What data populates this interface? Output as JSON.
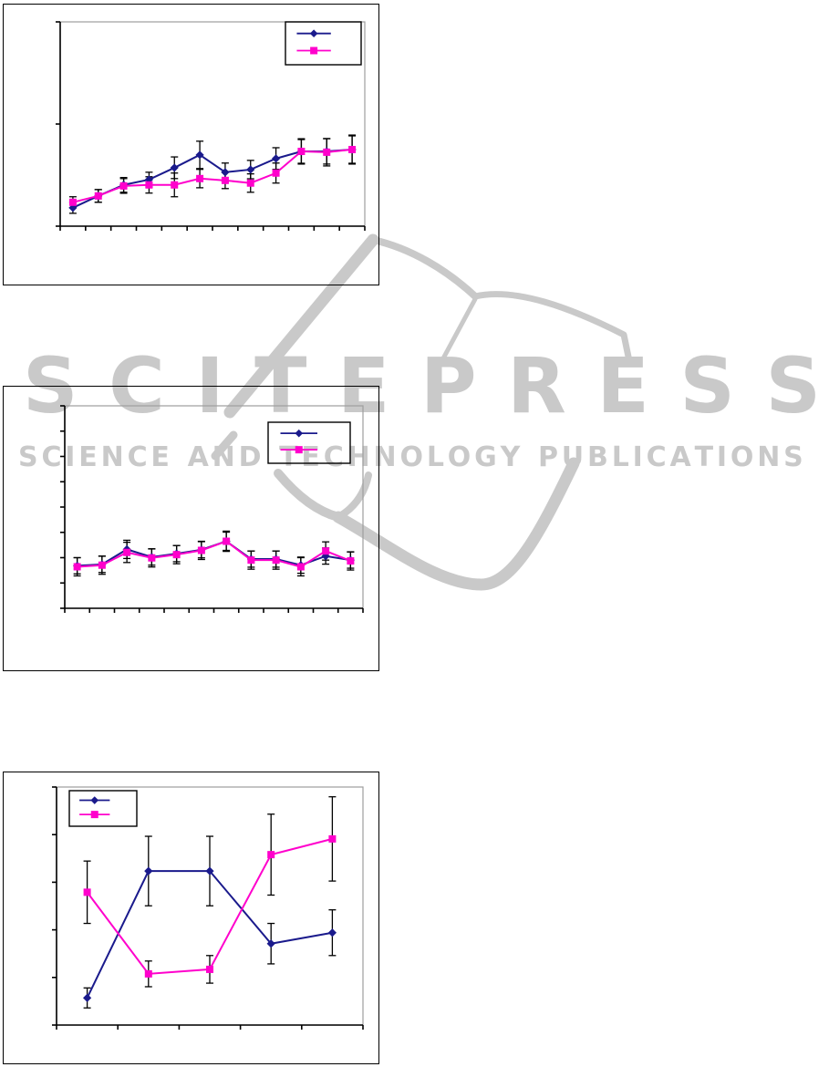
{
  "page": {
    "background": "#ffffff"
  },
  "watermark": {
    "title": "SCITEPRESS",
    "subtitle": "SCIENCE AND TECHNOLOGY PUBLICATIONS",
    "color": "#c9c9c9"
  },
  "colors": {
    "series1": "#1a1a8c",
    "series2": "#ff00cc",
    "error_bar": "#000000",
    "axis": "#000000",
    "plot_border": "#9e9e9e",
    "figure_border": "#000000",
    "legend_border": "#000000"
  },
  "chart_data": [
    {
      "id": "top-line-chart",
      "type": "line",
      "title": "",
      "xlabel": "",
      "ylabel": "",
      "axis_text_visible": false,
      "grid": false,
      "legend_position": "top-right",
      "n_points": 12,
      "x_axis": {
        "tick_count": 13,
        "labels": []
      },
      "y_axis": {
        "tick_count": 3,
        "labels": []
      },
      "value_scale": "percent-of-plot-height (source figure has no numeric axis labels)",
      "series": [
        {
          "name": "series-1",
          "marker": "diamond",
          "color_key": "series1",
          "values": [
            9.0,
            14.8,
            20.2,
            22.8,
            28.6,
            34.9,
            26.4,
            27.7,
            33.1,
            36.6,
            36.6,
            37.5
          ],
          "errors": [
            2.7,
            3.1,
            3.6,
            3.6,
            5.3,
            6.7,
            4.5,
            4.5,
            5.3,
            5.8,
            6.2,
            6.7
          ],
          "label": ""
        },
        {
          "name": "series-2",
          "marker": "square",
          "color_key": "series2",
          "values": [
            11.7,
            14.8,
            19.7,
            20.2,
            20.2,
            23.3,
            22.4,
            21.1,
            26.0,
            36.6,
            36.2,
            37.5
          ],
          "errors": [
            2.7,
            3.1,
            3.6,
            4.0,
            5.8,
            4.5,
            4.0,
            4.5,
            4.9,
            6.2,
            6.7,
            7.1
          ],
          "label": ""
        }
      ]
    },
    {
      "id": "middle-line-chart",
      "type": "line",
      "title": "",
      "xlabel": "",
      "ylabel": "",
      "axis_text_visible": false,
      "grid": false,
      "legend_position": "top-right",
      "n_points": 12,
      "x_axis": {
        "tick_count": 13,
        "labels": []
      },
      "y_axis": {
        "tick_count": 9,
        "labels": []
      },
      "value_scale": "percent-of-plot-height (source figure has no numeric axis labels)",
      "series": [
        {
          "name": "series-1",
          "marker": "diamond",
          "color_key": "series1",
          "values": [
            21.0,
            21.7,
            29.1,
            25.3,
            27.0,
            28.9,
            33.1,
            24.3,
            24.3,
            21.3,
            25.8,
            23.8
          ],
          "errors": [
            4.0,
            4.0,
            4.5,
            4.0,
            4.0,
            4.0,
            4.5,
            4.0,
            4.0,
            4.0,
            4.0,
            4.0
          ],
          "label": ""
        },
        {
          "name": "series-2",
          "marker": "square",
          "color_key": "series2",
          "values": [
            20.5,
            21.3,
            27.6,
            24.9,
            26.5,
            28.6,
            33.1,
            23.8,
            23.8,
            20.5,
            28.3,
            23.4
          ],
          "errors": [
            4.5,
            4.5,
            5.0,
            4.5,
            4.5,
            4.5,
            5.0,
            4.5,
            4.5,
            4.5,
            4.5,
            4.5
          ],
          "label": ""
        }
      ]
    },
    {
      "id": "bottom-line-chart",
      "type": "line",
      "title": "",
      "xlabel": "",
      "ylabel": "",
      "axis_text_visible": false,
      "grid": false,
      "legend_position": "top-left",
      "n_points": 5,
      "x_axis": {
        "tick_count": 6,
        "labels": []
      },
      "y_axis": {
        "tick_count": 6,
        "labels": []
      },
      "value_scale": "percent-of-plot-height (source figure has no numeric axis labels)",
      "series": [
        {
          "name": "series-1",
          "marker": "diamond",
          "color_key": "series1",
          "values": [
            11.4,
            64.7,
            64.7,
            34.2,
            38.8
          ],
          "errors": [
            4.2,
            14.6,
            14.6,
            8.5,
            9.6
          ],
          "label": ""
        },
        {
          "name": "series-2",
          "marker": "square",
          "color_key": "series2",
          "values": [
            55.8,
            21.5,
            23.4,
            71.6,
            78.2
          ],
          "errors": [
            13.1,
            5.4,
            5.8,
            17.0,
            17.7
          ],
          "label": ""
        }
      ]
    }
  ]
}
